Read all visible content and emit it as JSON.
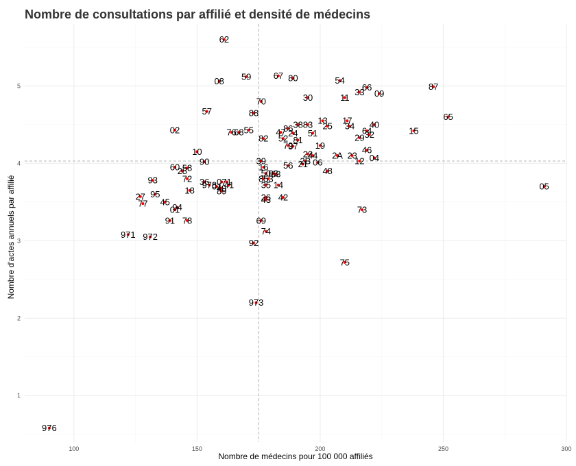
{
  "chart_data": {
    "type": "scatter",
    "title": "Nombre de consultations par affilié et densité de médecins",
    "xlabel": "Nombre de médecins pour 100 000 affiliés",
    "ylabel": "Nombre d'actes annuels par affilié",
    "xlim": [
      80,
      300
    ],
    "ylim": [
      0.4,
      5.8
    ],
    "x_ticks": [
      100,
      150,
      200,
      250,
      300
    ],
    "y_ticks": [
      1,
      2,
      3,
      4,
      5
    ],
    "grid": true,
    "reference_lines": {
      "x": 175,
      "y": 4.03
    },
    "colors": {
      "point": "#ff0000",
      "label": "#000000",
      "grid_major": "#ebebeb",
      "grid_minor": "#f5f5f5",
      "reference": "#b3b3b3"
    },
    "points": [
      {
        "label": "62",
        "x": 161,
        "y": 5.6
      },
      {
        "label": "59",
        "x": 170,
        "y": 5.12
      },
      {
        "label": "08",
        "x": 159,
        "y": 5.06
      },
      {
        "label": "67",
        "x": 183,
        "y": 5.13
      },
      {
        "label": "80",
        "x": 189,
        "y": 5.1
      },
      {
        "label": "54",
        "x": 208,
        "y": 5.07
      },
      {
        "label": "87",
        "x": 246,
        "y": 4.99
      },
      {
        "label": "66",
        "x": 219,
        "y": 4.98
      },
      {
        "label": "33",
        "x": 216,
        "y": 4.92
      },
      {
        "label": "09",
        "x": 224,
        "y": 4.9
      },
      {
        "label": "30",
        "x": 195,
        "y": 4.85
      },
      {
        "label": "11",
        "x": 210,
        "y": 4.85
      },
      {
        "label": "70",
        "x": 176,
        "y": 4.8
      },
      {
        "label": "57",
        "x": 154,
        "y": 4.67
      },
      {
        "label": "88",
        "x": 173,
        "y": 4.65
      },
      {
        "label": "65",
        "x": 252,
        "y": 4.6
      },
      {
        "label": "13",
        "x": 201,
        "y": 4.55
      },
      {
        "label": "17",
        "x": 211,
        "y": 4.55
      },
      {
        "label": "38",
        "x": 191,
        "y": 4.5
      },
      {
        "label": "83",
        "x": 195,
        "y": 4.5
      },
      {
        "label": "25",
        "x": 203,
        "y": 4.48
      },
      {
        "label": "34",
        "x": 212,
        "y": 4.48
      },
      {
        "label": "40",
        "x": 222,
        "y": 4.5
      },
      {
        "label": "86",
        "x": 187,
        "y": 4.45
      },
      {
        "label": "02",
        "x": 141,
        "y": 4.43
      },
      {
        "label": "55",
        "x": 171,
        "y": 4.43
      },
      {
        "label": "15",
        "x": 238,
        "y": 4.42
      },
      {
        "label": "64",
        "x": 219,
        "y": 4.42
      },
      {
        "label": "76",
        "x": 164,
        "y": 4.4
      },
      {
        "label": "68",
        "x": 167,
        "y": 4.4
      },
      {
        "label": "47",
        "x": 184,
        "y": 4.4
      },
      {
        "label": "24",
        "x": 189,
        "y": 4.39
      },
      {
        "label": "51",
        "x": 197,
        "y": 4.39
      },
      {
        "label": "32",
        "x": 220,
        "y": 4.37
      },
      {
        "label": "29",
        "x": 216,
        "y": 4.33
      },
      {
        "label": "82",
        "x": 177,
        "y": 4.32
      },
      {
        "label": "52",
        "x": 185,
        "y": 4.32
      },
      {
        "label": "81",
        "x": 191,
        "y": 4.3
      },
      {
        "label": "79",
        "x": 187,
        "y": 4.23
      },
      {
        "label": "37",
        "x": 189,
        "y": 4.22
      },
      {
        "label": "19",
        "x": 200,
        "y": 4.23
      },
      {
        "label": "46",
        "x": 219,
        "y": 4.17
      },
      {
        "label": "10",
        "x": 150,
        "y": 4.15
      },
      {
        "label": "22",
        "x": 195,
        "y": 4.12
      },
      {
        "label": "44",
        "x": 197,
        "y": 4.1
      },
      {
        "label": "2A",
        "x": 207,
        "y": 4.1
      },
      {
        "label": "23",
        "x": 213,
        "y": 4.1
      },
      {
        "label": "04",
        "x": 222,
        "y": 4.07
      },
      {
        "label": "12",
        "x": 216,
        "y": 4.03
      },
      {
        "label": "39",
        "x": 176,
        "y": 4.03
      },
      {
        "label": "90",
        "x": 153,
        "y": 4.02
      },
      {
        "label": "06",
        "x": 199,
        "y": 4.01
      },
      {
        "label": "2B",
        "x": 194,
        "y": 4.03
      },
      {
        "label": "21",
        "x": 193,
        "y": 3.99
      },
      {
        "label": "56",
        "x": 187,
        "y": 3.97
      },
      {
        "label": "16",
        "x": 177,
        "y": 3.95
      },
      {
        "label": "60",
        "x": 141,
        "y": 3.95
      },
      {
        "label": "58",
        "x": 146,
        "y": 3.94
      },
      {
        "label": "28",
        "x": 144,
        "y": 3.9
      },
      {
        "label": "48",
        "x": 203,
        "y": 3.9
      },
      {
        "label": "50",
        "x": 178,
        "y": 3.87
      },
      {
        "label": "03",
        "x": 181,
        "y": 3.87
      },
      {
        "label": "63",
        "x": 182,
        "y": 3.86
      },
      {
        "label": "72",
        "x": 146,
        "y": 3.8
      },
      {
        "label": "93",
        "x": 132,
        "y": 3.78
      },
      {
        "label": "36",
        "x": 153,
        "y": 3.76
      },
      {
        "label": "85",
        "x": 177,
        "y": 3.8
      },
      {
        "label": "53",
        "x": 179,
        "y": 3.8
      },
      {
        "label": "07",
        "x": 160,
        "y": 3.76
      },
      {
        "label": "71",
        "x": 162,
        "y": 3.76
      },
      {
        "label": "35",
        "x": 178,
        "y": 3.72
      },
      {
        "label": "14",
        "x": 183,
        "y": 3.72
      },
      {
        "label": "978",
        "x": 155,
        "y": 3.72
      },
      {
        "label": "41",
        "x": 163,
        "y": 3.72
      },
      {
        "label": "01",
        "x": 158,
        "y": 3.7
      },
      {
        "label": "49",
        "x": 160,
        "y": 3.68
      },
      {
        "label": "89",
        "x": 160,
        "y": 3.64
      },
      {
        "label": "05",
        "x": 291,
        "y": 3.7
      },
      {
        "label": "18",
        "x": 147,
        "y": 3.65
      },
      {
        "label": "95",
        "x": 133,
        "y": 3.6
      },
      {
        "label": "27",
        "x": 127,
        "y": 3.57
      },
      {
        "label": "42",
        "x": 185,
        "y": 3.56
      },
      {
        "label": "26",
        "x": 178,
        "y": 3.56
      },
      {
        "label": "43",
        "x": 178,
        "y": 3.53
      },
      {
        "label": "45",
        "x": 137,
        "y": 3.5
      },
      {
        "label": "77",
        "x": 128,
        "y": 3.48
      },
      {
        "label": "94",
        "x": 142,
        "y": 3.43
      },
      {
        "label": "01b",
        "x": 141,
        "y": 3.4
      },
      {
        "label": "73",
        "x": 217,
        "y": 3.4
      },
      {
        "label": "91",
        "x": 139,
        "y": 3.26
      },
      {
        "label": "78",
        "x": 146,
        "y": 3.26
      },
      {
        "label": "69",
        "x": 176,
        "y": 3.26
      },
      {
        "label": "74",
        "x": 178,
        "y": 3.12
      },
      {
        "label": "971",
        "x": 122,
        "y": 3.08
      },
      {
        "label": "972",
        "x": 131,
        "y": 3.05
      },
      {
        "label": "92",
        "x": 173,
        "y": 2.97
      },
      {
        "label": "75",
        "x": 210,
        "y": 2.72
      },
      {
        "label": "973",
        "x": 174,
        "y": 2.2
      },
      {
        "label": "976",
        "x": 90,
        "y": 0.58
      }
    ]
  }
}
